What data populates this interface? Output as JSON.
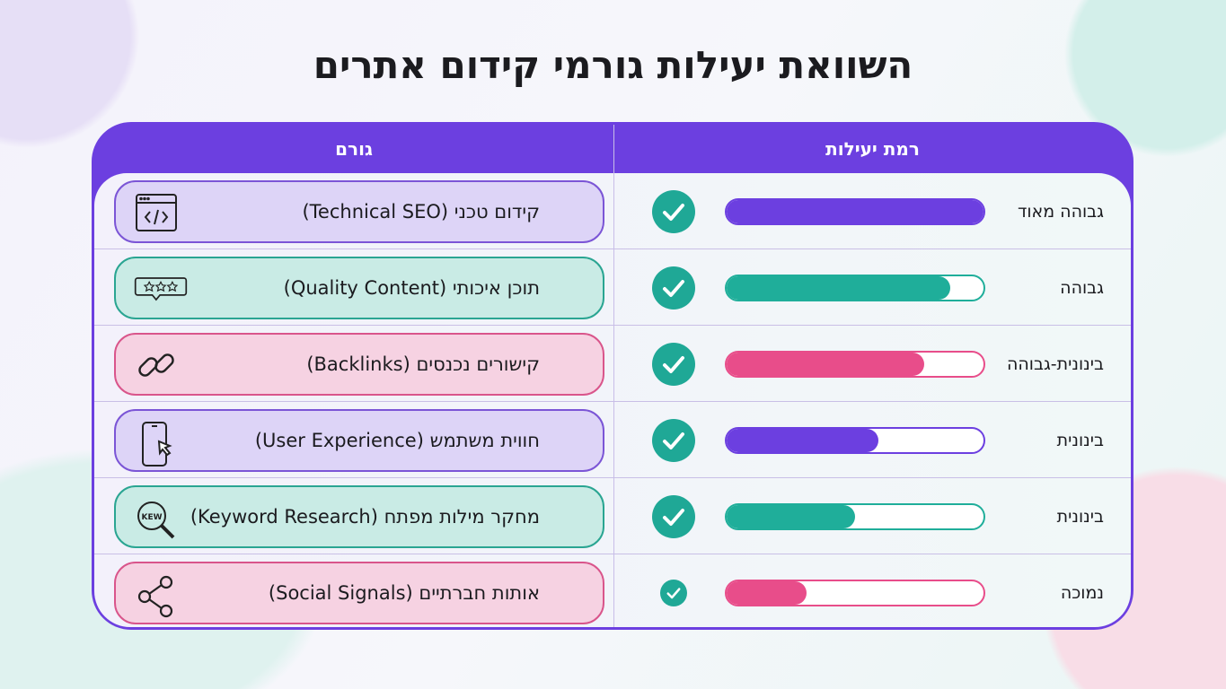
{
  "title": "השוואת יעילות גורמי קידום אתרים",
  "headers": {
    "factor": "גורם",
    "effectiveness": "רמת יעילות"
  },
  "colors": {
    "purple": "#6c3fe0",
    "teal": "#1fae9a",
    "pink": "#e84d8a"
  },
  "rows": [
    {
      "factor": "קידום טכני (Technical SEO)",
      "icon": "code-window-icon",
      "theme": "purple",
      "level": "גבוהה מאוד",
      "fill": 1.0,
      "check": "check-icon"
    },
    {
      "factor": "תוכן איכותי (Quality Content)",
      "icon": "star-rating-bubble-icon",
      "theme": "teal",
      "level": "גבוהה",
      "fill": 0.87,
      "check": "check-icon"
    },
    {
      "factor": "קישורים נכנסים (Backlinks)",
      "icon": "link-icon",
      "theme": "pink",
      "level": "בינונית-גבוהה",
      "fill": 0.77,
      "check": "check-icon"
    },
    {
      "factor": "חווית משתמש (User Experience)",
      "icon": "mobile-cursor-icon",
      "theme": "purple",
      "level": "בינונית",
      "fill": 0.59,
      "check": "check-icon"
    },
    {
      "factor": "מחקר מילות מפתח (Keyword Research)",
      "icon": "keyword-magnifier-icon",
      "theme": "teal",
      "level": "בינונית",
      "fill": 0.5,
      "check": "check-icon"
    },
    {
      "factor": "אותות חברתיים (Social Signals)",
      "icon": "share-icon",
      "theme": "pink",
      "level": "נמוכה",
      "fill": 0.31,
      "check": "check-icon"
    }
  ],
  "keyword_icon_text": "KEW"
}
